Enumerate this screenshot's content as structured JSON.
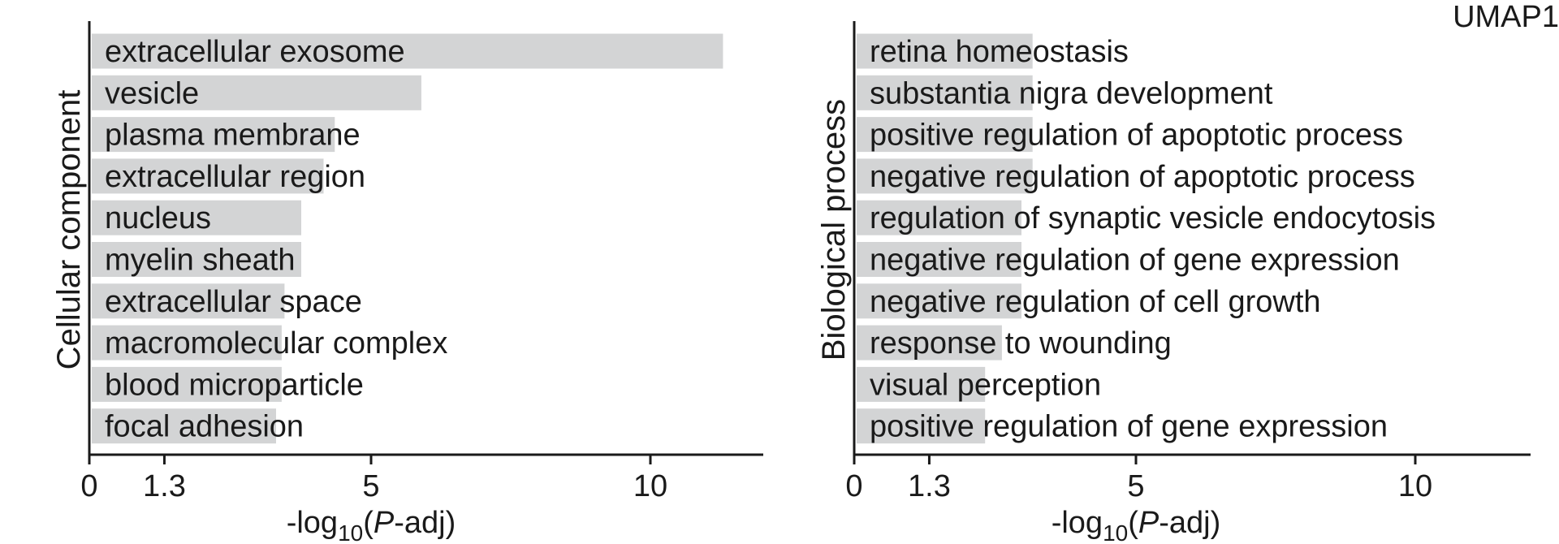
{
  "corner_label": "UMAP1",
  "chart_data": [
    {
      "type": "bar",
      "orientation": "horizontal",
      "ylabel": "Cellular component",
      "xlabel_prefix": "-log",
      "xlabel_sub": "10",
      "xlabel_open": "(",
      "xlabel_italic": "P",
      "xlabel_suffix": "-adj)",
      "xlim": [
        0,
        12
      ],
      "xticks": [
        {
          "value": 0,
          "label": "0"
        },
        {
          "value": 1.3,
          "label": "1.3"
        },
        {
          "value": 5,
          "label": "5"
        },
        {
          "value": 10,
          "label": "10"
        }
      ],
      "categories": [
        "extracellular exosome",
        "vesicle",
        "plasma membrane",
        "extracellular region",
        "nucleus",
        "myelin sheath",
        "extracellular space",
        "macromolecular complex",
        "blood microparticle",
        "focal adhesion"
      ],
      "values": [
        11.3,
        5.9,
        4.35,
        4.15,
        3.75,
        3.75,
        3.45,
        3.4,
        3.4,
        3.3
      ],
      "bar_color": "#d3d4d5"
    },
    {
      "type": "bar",
      "orientation": "horizontal",
      "ylabel": "Biological process",
      "xlabel_prefix": "-log",
      "xlabel_sub": "10",
      "xlabel_open": "(",
      "xlabel_italic": "P",
      "xlabel_suffix": "-adj)",
      "xlim": [
        0,
        12
      ],
      "xticks": [
        {
          "value": 0,
          "label": "0"
        },
        {
          "value": 1.3,
          "label": "1.3"
        },
        {
          "value": 5,
          "label": "5"
        },
        {
          "value": 10,
          "label": "10"
        }
      ],
      "categories": [
        "retina homeostasis",
        "substantia nigra development",
        "positive regulation of apoptotic process",
        "negative regulation of apoptotic process",
        "regulation of synaptic vesicle endocytosis",
        "negative regulation of gene expression",
        "negative regulation of cell growth",
        "response to wounding",
        "visual perception",
        "positive regulation of gene expression"
      ],
      "values": [
        3.15,
        3.15,
        3.15,
        3.15,
        2.95,
        2.95,
        2.95,
        2.6,
        2.3,
        2.3
      ],
      "bar_color": "#d3d4d5"
    }
  ]
}
